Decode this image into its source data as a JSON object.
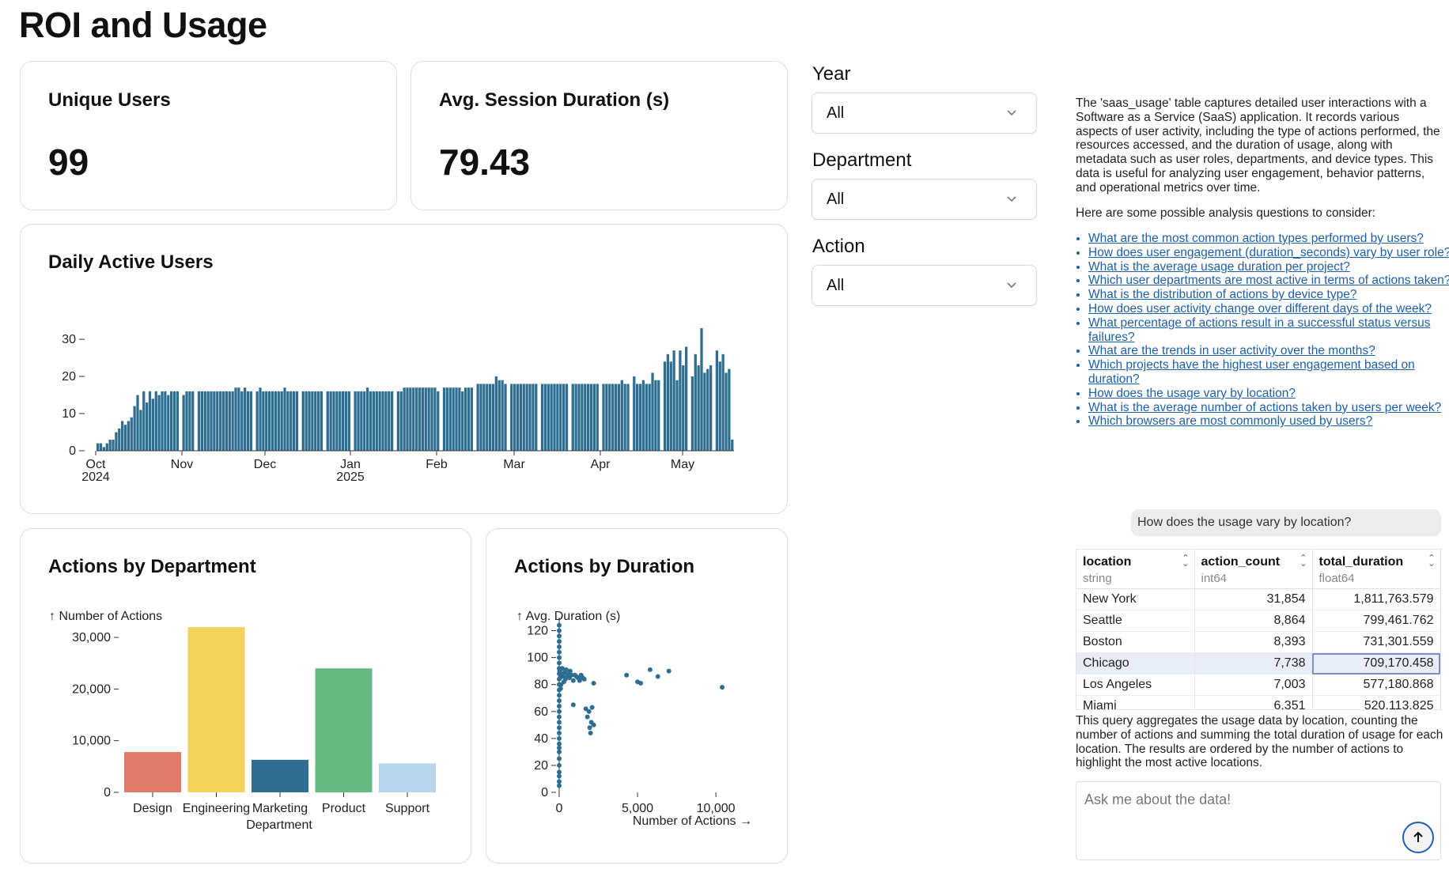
{
  "page": {
    "title": "ROI and Usage"
  },
  "kpis": {
    "unique_users": {
      "label": "Unique Users",
      "value": "99"
    },
    "avg_session": {
      "label": "Avg. Session Duration (s)",
      "value": "79.43"
    }
  },
  "filters": {
    "year": {
      "label": "Year",
      "value": "All"
    },
    "department": {
      "label": "Department",
      "value": "All"
    },
    "action": {
      "label": "Action",
      "value": "All"
    }
  },
  "colors": {
    "bar_blue": "#2f6e91",
    "design": "#e07a6a",
    "engineering": "#f3d25c",
    "marketing": "#2f6e91",
    "product": "#66bb84",
    "support": "#b7d6ee",
    "link": "#1f5fa8"
  },
  "chart_data": [
    {
      "id": "dau",
      "type": "bar",
      "title": "Daily Active Users",
      "x_ticks": [
        {
          "line1": "Oct",
          "line2": "2024"
        },
        {
          "line1": "Nov",
          "line2": ""
        },
        {
          "line1": "Dec",
          "line2": ""
        },
        {
          "line1": "Jan",
          "line2": "2025"
        },
        {
          "line1": "Feb",
          "line2": ""
        },
        {
          "line1": "Mar",
          "line2": ""
        },
        {
          "line1": "Apr",
          "line2": ""
        },
        {
          "line1": "May",
          "line2": ""
        }
      ],
      "y_ticks": [
        "0",
        "10",
        "20",
        "30"
      ],
      "ylim": [
        0,
        33
      ],
      "values": [
        2,
        2,
        1,
        2,
        3,
        3,
        5,
        6,
        8,
        7,
        8,
        9,
        12,
        15,
        11,
        16,
        13,
        16,
        14,
        16,
        15,
        16,
        16,
        15,
        16,
        16,
        16,
        0,
        15,
        16,
        16,
        16,
        0,
        16,
        16,
        16,
        16,
        16,
        16,
        16,
        16,
        16,
        16,
        16,
        16,
        17,
        17,
        16,
        17,
        16,
        16,
        0,
        16,
        17,
        16,
        16,
        16,
        16,
        16,
        16,
        16,
        17,
        16,
        16,
        16,
        16,
        0,
        16,
        16,
        16,
        16,
        16,
        16,
        16,
        0,
        16,
        16,
        16,
        16,
        16,
        16,
        16,
        16,
        0,
        16,
        16,
        16,
        16,
        17,
        16,
        16,
        16,
        16,
        16,
        16,
        16,
        16,
        0,
        16,
        16,
        17,
        17,
        17,
        17,
        17,
        17,
        17,
        17,
        17,
        17,
        17,
        16,
        0,
        17,
        17,
        17,
        17,
        17,
        17,
        16,
        17,
        17,
        17,
        0,
        18,
        18,
        18,
        18,
        18,
        18,
        20,
        19,
        19,
        18,
        0,
        18,
        18,
        18,
        18,
        18,
        18,
        18,
        18,
        18,
        0,
        18,
        18,
        18,
        18,
        18,
        18,
        18,
        18,
        18,
        0,
        18,
        18,
        18,
        18,
        18,
        18,
        18,
        18,
        18,
        0,
        18,
        18,
        18,
        18,
        18,
        18,
        19,
        18,
        18,
        0,
        20,
        18,
        18,
        19,
        18,
        18,
        21,
        19,
        19,
        0,
        24,
        26,
        24,
        27,
        19,
        27,
        23,
        28,
        0,
        20,
        26,
        23,
        33,
        21,
        22,
        23,
        0,
        27,
        24,
        26,
        21,
        22,
        3
      ]
    },
    {
      "id": "by_department",
      "type": "bar",
      "title": "Actions by Department",
      "ylabel": "↑ Number of Actions",
      "xlabel": "Department",
      "categories": [
        "Design",
        "Engineering",
        "Marketing",
        "Product",
        "Support"
      ],
      "values": [
        7800,
        32000,
        6300,
        24000,
        5600
      ],
      "y_ticks": [
        "0",
        "10,000",
        "20,000",
        "30,000"
      ],
      "ylim": [
        0,
        32000
      ]
    },
    {
      "id": "by_duration",
      "type": "scatter",
      "title": "Actions by Duration",
      "ylabel": "↑ Avg. Duration (s)",
      "xlabel": "Number of Actions →",
      "x_ticks": [
        "0",
        "5,000",
        "10,000"
      ],
      "y_ticks": [
        "0",
        "20",
        "40",
        "60",
        "80",
        "100",
        "120"
      ],
      "xlim": [
        0,
        10500
      ],
      "ylim": [
        0,
        125
      ],
      "points": [
        [
          0,
          5
        ],
        [
          0,
          8
        ],
        [
          0,
          12
        ],
        [
          0,
          15
        ],
        [
          0,
          20
        ],
        [
          0,
          25
        ],
        [
          0,
          30
        ],
        [
          0,
          33
        ],
        [
          0,
          36
        ],
        [
          0,
          40
        ],
        [
          0,
          44
        ],
        [
          0,
          48
        ],
        [
          0,
          52
        ],
        [
          0,
          56
        ],
        [
          0,
          60
        ],
        [
          0,
          64
        ],
        [
          0,
          68
        ],
        [
          0,
          72
        ],
        [
          0,
          76
        ],
        [
          0,
          80
        ],
        [
          0,
          84
        ],
        [
          0,
          88
        ],
        [
          0,
          92
        ],
        [
          0,
          96
        ],
        [
          0,
          100
        ],
        [
          0,
          104
        ],
        [
          0,
          108
        ],
        [
          0,
          112
        ],
        [
          0,
          116
        ],
        [
          0,
          120
        ],
        [
          0,
          124
        ],
        [
          30,
          90
        ],
        [
          60,
          85
        ],
        [
          90,
          77
        ],
        [
          120,
          80
        ],
        [
          150,
          88
        ],
        [
          200,
          92
        ],
        [
          250,
          86
        ],
        [
          300,
          82
        ],
        [
          350,
          89
        ],
        [
          400,
          84
        ],
        [
          450,
          91
        ],
        [
          500,
          86
        ],
        [
          600,
          88
        ],
        [
          650,
          85
        ],
        [
          700,
          90
        ],
        [
          800,
          87
        ],
        [
          900,
          83
        ],
        [
          1000,
          87
        ],
        [
          1100,
          86
        ],
        [
          1200,
          85
        ],
        [
          1300,
          83
        ],
        [
          1400,
          87
        ],
        [
          1500,
          85
        ],
        [
          1600,
          84
        ],
        [
          900,
          65
        ],
        [
          1700,
          62
        ],
        [
          1800,
          56
        ],
        [
          1900,
          60
        ],
        [
          1950,
          48
        ],
        [
          2000,
          44
        ],
        [
          2050,
          52
        ],
        [
          2100,
          63
        ],
        [
          2200,
          50
        ],
        [
          2200,
          81
        ],
        [
          4300,
          87
        ],
        [
          5000,
          82
        ],
        [
          5200,
          81
        ],
        [
          5800,
          91
        ],
        [
          6300,
          86
        ],
        [
          7000,
          90
        ],
        [
          10400,
          78
        ]
      ]
    }
  ],
  "assistant": {
    "description": "The 'saas_usage' table captures detailed user interactions with a Software as a Service (SaaS) application. It records various aspects of user activity, including the type of actions performed, the resources accessed, and the duration of usage, along with metadata such as user roles, departments, and device types. This data is useful for analyzing user engagement, behavior patterns, and operational metrics over time.",
    "intro": "Here are some possible analysis questions to consider:",
    "questions": [
      "What are the most common action types performed by users?",
      "How does user engagement (duration_seconds) vary by user role?",
      "What is the average usage duration per project?",
      "Which user departments are most active in terms of actions taken?",
      "What is the distribution of actions by device type?",
      "How does user activity change over different days of the week?",
      "What percentage of actions result in a successful status versus failures?",
      "What are the trends in user activity over the months?",
      "Which projects have the highest user engagement based on duration?",
      "How does the usage vary by location?",
      "What is the average number of actions taken by users per week?",
      "Which browsers are most commonly used by users?"
    ],
    "user_message": "How does the usage vary by location?",
    "table": {
      "columns": [
        {
          "name": "location",
          "type": "string"
        },
        {
          "name": "action_count",
          "type": "int64"
        },
        {
          "name": "total_duration",
          "type": "float64"
        }
      ],
      "rows": [
        [
          "New York",
          "31,854",
          "1,811,763.579"
        ],
        [
          "Seattle",
          "8,864",
          "799,461.762"
        ],
        [
          "Boston",
          "8,393",
          "731,301.559"
        ],
        [
          "Chicago",
          "7,738",
          "709,170.458"
        ],
        [
          "Los Angeles",
          "7,003",
          "577,180.868"
        ],
        [
          "Miami",
          "6,351",
          "520,113.825"
        ]
      ]
    },
    "explanation": "This query aggregates the usage data by location, counting the number of actions and summing the total duration of usage for each location. The results are ordered by the number of actions to highlight the most active locations.",
    "input_placeholder": "Ask me about the data!"
  }
}
